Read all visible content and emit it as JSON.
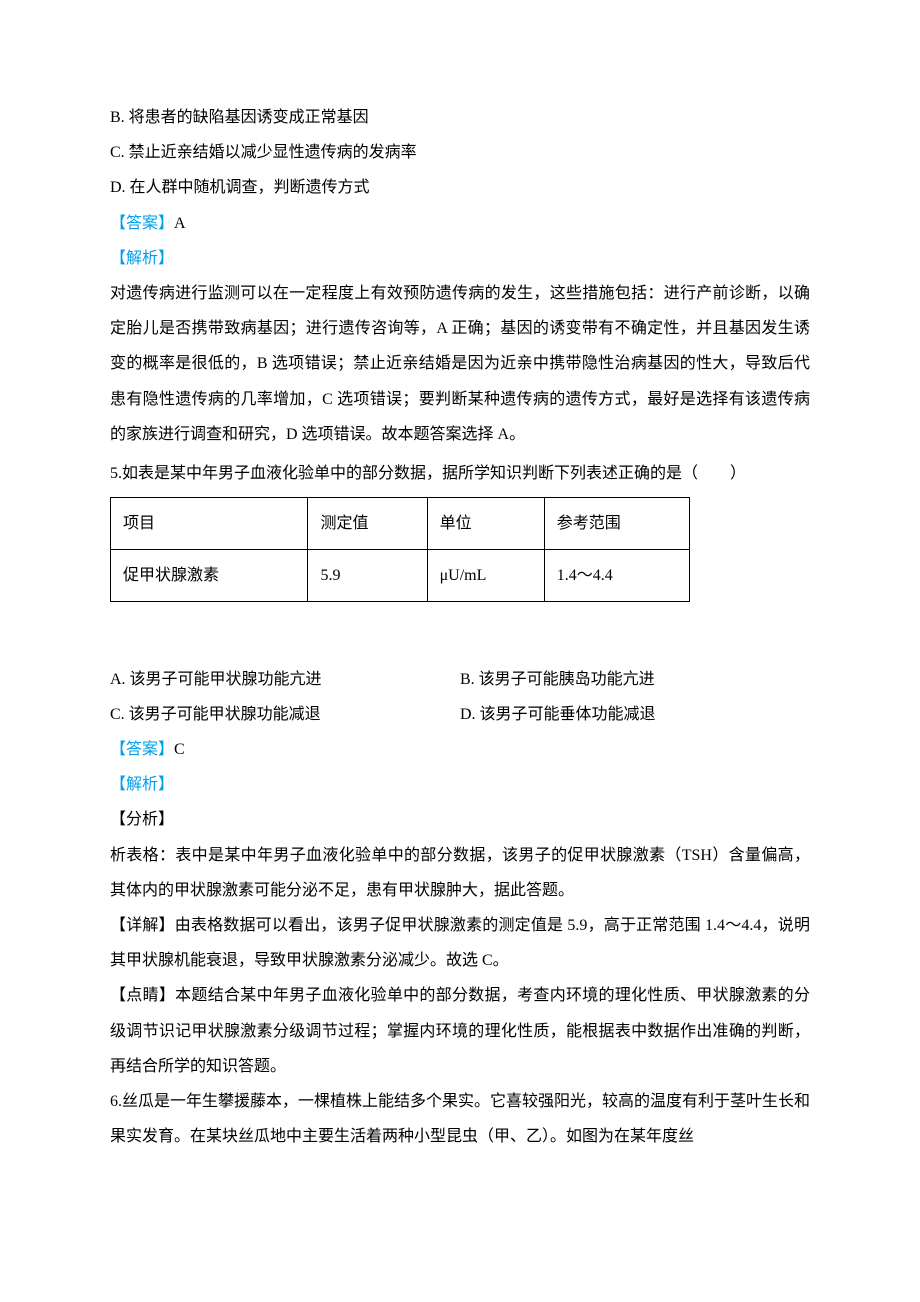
{
  "q4": {
    "optB": "B. 将患者的缺陷基因诱变成正常基因",
    "optC": "C. 禁止近亲结婚以减少显性遗传病的发病率",
    "optD": "D. 在人群中随机调查，判断遗传方式",
    "answer_label": "【答案】",
    "answer": "A",
    "analysis_label": "【解析】",
    "analysis": "对遗传病进行监测可以在一定程度上有效预防遗传病的发生，这些措施包括：进行产前诊断，以确定胎儿是否携带致病基因；进行遗传咨询等，A 正确；基因的诱变带有不确定性，并且基因发生诱变的概率是很低的，B 选项错误；禁止近亲结婚是因为近亲中携带隐性治病基因的性大，导致后代患有隐性遗传病的几率增加，C 选项错误；要判断某种遗传病的遗传方式，最好是选择有该遗传病的家族进行调查和研究，D 选项错误。故本题答案选择 A。"
  },
  "q5": {
    "stem": "5.如表是某中年男子血液化验单中的部分数据，据所学知识判断下列表述正确的是（　　）",
    "table": {
      "headers": [
        "项目",
        "测定值",
        "单位",
        "参考范围"
      ],
      "row": [
        "促甲状腺激素",
        "5.9",
        "μU/mL",
        "1.4～4.4"
      ]
    },
    "optA": "A. 该男子可能甲状腺功能亢进",
    "optB": "B. 该男子可能胰岛功能亢进",
    "optC": "C. 该男子可能甲状腺功能减退",
    "optD": "D. 该男子可能垂体功能减退",
    "answer_label": "【答案】",
    "answer": "C",
    "analysis_label": "【解析】",
    "fenxi_label": "【分析】",
    "fenxi": "析表格：表中是某中年男子血液化验单中的部分数据，该男子的促甲状腺激素（TSH）含量偏高，其体内的甲状腺激素可能分泌不足，患有甲状腺肿大，据此答题。",
    "detail_label": "【详解】",
    "detail": "由表格数据可以看出，该男子促甲状腺激素的测定值是 5.9，高于正常范围 1.4～4.4，说明其甲状腺机能衰退，导致甲状腺激素分泌减少。故选 C。",
    "dianjing_label": "【点睛】",
    "dianjing": "本题结合某中年男子血液化验单中的部分数据，考查内环境的理化性质、甲状腺激素的分级调节识记甲状腺激素分级调节过程；掌握内环境的理化性质，能根据表中数据作出准确的判断，再结合所学的知识答题。"
  },
  "q6": {
    "stem": "6.丝瓜是一年生攀援藤本，一棵植株上能结多个果实。它喜较强阳光，较高的温度有利于茎叶生长和果实发育。在某块丝瓜地中主要生活着两种小型昆虫（甲、乙）。如图为在某年度丝"
  },
  "colors": {
    "link_blue": "#00a0e9",
    "text": "#000000",
    "bg": "#ffffff",
    "border": "#000000"
  },
  "typography": {
    "body_fontsize": 16,
    "line_height": 2.2,
    "font_family": "SimSun"
  }
}
